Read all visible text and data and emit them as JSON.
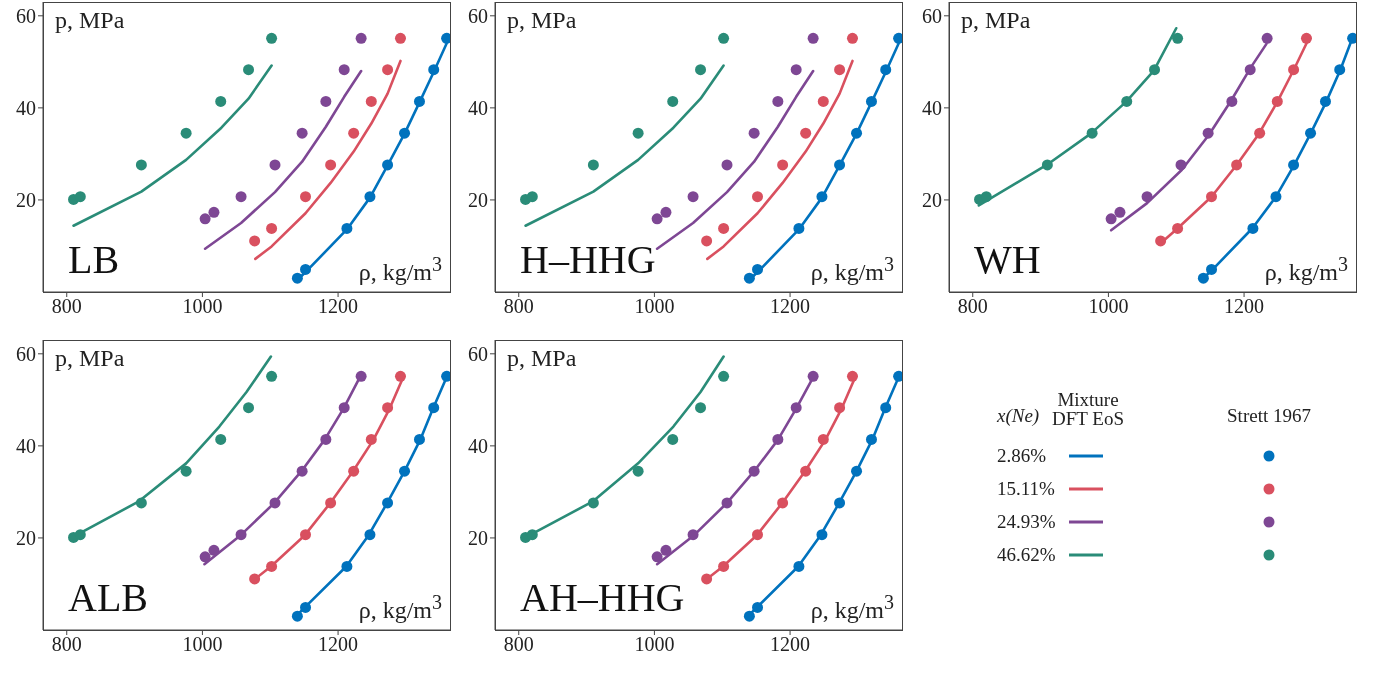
{
  "chart_data": [
    {
      "type": "line",
      "title": "LB",
      "xlabel": "ρ, kg/m$^{3}$",
      "ylabel": "p, MPa",
      "xlim": [
        765,
        1365
      ],
      "ylim": [
        0,
        63
      ],
      "xticks": [
        800,
        1000,
        1200
      ],
      "yticks": [
        20,
        40,
        60
      ],
      "series": [
        {
          "color": "#0072bd",
          "x": [
            1137,
            1152,
            1213,
            1247,
            1273,
            1298,
            1320,
            1341,
            1360
          ],
          "values": [
            2.3,
            4.3,
            13.6,
            20.5,
            27.5,
            34.4,
            41.2,
            47.8,
            54.0
          ]
        },
        {
          "color": "#d9505f",
          "x": [
            1078,
            1102,
            1152,
            1189,
            1223,
            1249,
            1273,
            1292
          ],
          "values": [
            7.2,
            9.9,
            17.1,
            23.7,
            30.5,
            36.6,
            43.1,
            50.2
          ]
        },
        {
          "color": "#7e4794",
          "x": [
            1004,
            1057,
            1107,
            1147,
            1182,
            1209,
            1234
          ],
          "values": [
            9.4,
            15.0,
            21.7,
            28.3,
            35.9,
            42.4,
            48.0
          ]
        },
        {
          "color": "#2a8c78",
          "x": [
            810,
            910,
            976,
            1028,
            1068,
            1102
          ],
          "values": [
            14.4,
            21.8,
            28.7,
            35.7,
            42.0,
            49.2
          ]
        },
        {
          "type": "scatter",
          "marker": "circle",
          "color": "#0072bd",
          "x": [
            1140,
            1152,
            1213,
            1247,
            1273,
            1298,
            1320,
            1341,
            1360
          ],
          "values": [
            3.0,
            4.9,
            13.8,
            20.7,
            27.6,
            34.5,
            41.4,
            48.3,
            55.1
          ]
        },
        {
          "type": "scatter",
          "marker": "circle",
          "color": "#d9505f",
          "x": [
            1077,
            1102,
            1152,
            1189,
            1223,
            1249,
            1273,
            1292
          ],
          "values": [
            11.1,
            13.8,
            20.7,
            27.6,
            34.5,
            41.4,
            48.3,
            55.1
          ]
        },
        {
          "type": "scatter",
          "marker": "circle",
          "color": "#7e4794",
          "x": [
            1004,
            1017,
            1057,
            1107,
            1147,
            1182,
            1209,
            1234
          ],
          "values": [
            15.9,
            17.3,
            20.7,
            27.6,
            34.5,
            41.4,
            48.3,
            55.1
          ]
        },
        {
          "type": "scatter",
          "marker": "circle",
          "color": "#2a8c78",
          "x": [
            810,
            820,
            910,
            976,
            1027,
            1068,
            1102
          ],
          "values": [
            20.1,
            20.7,
            27.6,
            34.5,
            41.4,
            48.3,
            55.1
          ]
        }
      ]
    },
    {
      "type": "line",
      "title": "H–HHG",
      "xlabel": "ρ, kg/m$^{3}$",
      "ylabel": "p, MPa",
      "xlim": [
        765,
        1365
      ],
      "ylim": [
        0,
        63
      ],
      "xticks": [
        800,
        1000,
        1200
      ],
      "yticks": [
        20,
        40,
        60
      ],
      "series": [
        {
          "color": "#0072bd",
          "x": [
            1137,
            1152,
            1213,
            1247,
            1273,
            1298,
            1320,
            1341,
            1360
          ],
          "values": [
            2.3,
            4.3,
            13.6,
            20.5,
            27.5,
            34.4,
            41.2,
            47.8,
            54.0
          ]
        },
        {
          "color": "#d9505f",
          "x": [
            1078,
            1102,
            1152,
            1189,
            1223,
            1249,
            1273,
            1292
          ],
          "values": [
            7.2,
            9.9,
            17.1,
            23.7,
            30.5,
            36.6,
            43.1,
            50.2
          ]
        },
        {
          "color": "#7e4794",
          "x": [
            1004,
            1057,
            1107,
            1147,
            1182,
            1209,
            1234
          ],
          "values": [
            9.4,
            15.0,
            21.7,
            28.3,
            35.9,
            42.4,
            48.0
          ]
        },
        {
          "color": "#2a8c78",
          "x": [
            810,
            910,
            976,
            1028,
            1068,
            1102
          ],
          "values": [
            14.4,
            21.8,
            28.7,
            35.7,
            42.0,
            49.2
          ]
        },
        {
          "type": "scatter",
          "marker": "circle",
          "color": "#0072bd",
          "x": [
            1140,
            1152,
            1213,
            1247,
            1273,
            1298,
            1320,
            1341,
            1360
          ],
          "values": [
            3.0,
            4.9,
            13.8,
            20.7,
            27.6,
            34.5,
            41.4,
            48.3,
            55.1
          ]
        },
        {
          "type": "scatter",
          "marker": "circle",
          "color": "#d9505f",
          "x": [
            1077,
            1102,
            1152,
            1189,
            1223,
            1249,
            1273,
            1292
          ],
          "values": [
            11.1,
            13.8,
            20.7,
            27.6,
            34.5,
            41.4,
            48.3,
            55.1
          ]
        },
        {
          "type": "scatter",
          "marker": "circle",
          "color": "#7e4794",
          "x": [
            1004,
            1017,
            1057,
            1107,
            1147,
            1182,
            1209,
            1234
          ],
          "values": [
            15.9,
            17.3,
            20.7,
            27.6,
            34.5,
            41.4,
            48.3,
            55.1
          ]
        },
        {
          "type": "scatter",
          "marker": "circle",
          "color": "#2a8c78",
          "x": [
            810,
            820,
            910,
            976,
            1027,
            1068,
            1102
          ],
          "values": [
            20.1,
            20.7,
            27.6,
            34.5,
            41.4,
            48.3,
            55.1
          ]
        }
      ]
    },
    {
      "type": "line",
      "title": "WH",
      "xlabel": "ρ, kg/m$^{3}$",
      "ylabel": "p, MPa",
      "xlim": [
        765,
        1365
      ],
      "ylim": [
        0,
        63
      ],
      "xticks": [
        800,
        1000,
        1200
      ],
      "yticks": [
        20,
        40,
        60
      ],
      "series": [
        {
          "color": "#0072bd",
          "x": [
            1136,
            1151,
            1212,
            1247,
            1274,
            1298,
            1321,
            1342,
            1360
          ],
          "values": [
            2.5,
            4.5,
            13.8,
            20.7,
            27.6,
            34.4,
            41.3,
            48.3,
            55.3
          ]
        },
        {
          "color": "#d9505f",
          "x": [
            1077,
            1101,
            1152,
            1189,
            1222,
            1249,
            1274,
            1293
          ],
          "values": [
            10.6,
            13.7,
            20.7,
            27.6,
            34.4,
            41.3,
            48.5,
            54.3
          ]
        },
        {
          "color": "#7e4794",
          "x": [
            1004,
            1057,
            1108,
            1148,
            1181,
            1210,
            1233
          ],
          "values": [
            13.4,
            19.3,
            26.5,
            34.1,
            41.6,
            48.8,
            53.9
          ]
        },
        {
          "color": "#2a8c78",
          "x": [
            809,
            909,
            974,
            1026,
            1067,
            1100
          ],
          "values": [
            18.8,
            27.6,
            34.4,
            41.3,
            48.1,
            57.3
          ]
        },
        {
          "type": "scatter",
          "marker": "circle",
          "color": "#0072bd",
          "x": [
            1140,
            1152,
            1213,
            1247,
            1273,
            1298,
            1320,
            1341,
            1360
          ],
          "values": [
            3.0,
            4.9,
            13.8,
            20.7,
            27.6,
            34.5,
            41.4,
            48.3,
            55.1
          ]
        },
        {
          "type": "scatter",
          "marker": "circle",
          "color": "#d9505f",
          "x": [
            1077,
            1102,
            1152,
            1189,
            1223,
            1249,
            1273,
            1292
          ],
          "values": [
            11.1,
            13.8,
            20.7,
            27.6,
            34.5,
            41.4,
            48.3,
            55.1
          ]
        },
        {
          "type": "scatter",
          "marker": "circle",
          "color": "#7e4794",
          "x": [
            1004,
            1017,
            1057,
            1107,
            1147,
            1182,
            1209,
            1234
          ],
          "values": [
            15.9,
            17.3,
            20.7,
            27.6,
            34.5,
            41.4,
            48.3,
            55.1
          ]
        },
        {
          "type": "scatter",
          "marker": "circle",
          "color": "#2a8c78",
          "x": [
            810,
            820,
            910,
            976,
            1027,
            1068,
            1102
          ],
          "values": [
            20.1,
            20.7,
            27.6,
            34.5,
            41.4,
            48.3,
            55.1
          ]
        }
      ]
    },
    {
      "type": "line",
      "title": "ALB",
      "xlabel": "ρ, kg/m$^{3}$",
      "ylabel": "p, MPa",
      "xlim": [
        765,
        1365
      ],
      "ylim": [
        0,
        63
      ],
      "xticks": [
        800,
        1000,
        1200
      ],
      "yticks": [
        20,
        40,
        60
      ],
      "series": [
        {
          "color": "#0072bd",
          "x": [
            1138,
            1151,
            1212,
            1245,
            1272,
            1298,
            1321,
            1340,
            1360
          ],
          "values": [
            3.0,
            4.9,
            13.8,
            20.6,
            27.5,
            34.5,
            41.3,
            48.1,
            54.9
          ]
        },
        {
          "color": "#d9505f",
          "x": [
            1076,
            1101,
            1151,
            1188,
            1222,
            1252,
            1276,
            1296
          ],
          "values": [
            10.9,
            13.8,
            20.6,
            27.5,
            34.5,
            41.3,
            48.1,
            54.9
          ]
        },
        {
          "color": "#7e4794",
          "x": [
            1003,
            1055,
            1106,
            1146,
            1180,
            1208,
            1232
          ],
          "values": [
            14.3,
            20.4,
            27.6,
            34.5,
            41.3,
            48.1,
            54.9
          ]
        },
        {
          "color": "#2a8c78",
          "x": [
            808,
            907,
            976,
            1025,
            1065,
            1101
          ],
          "values": [
            20.1,
            28.0,
            36.2,
            44.2,
            51.7,
            59.4
          ]
        },
        {
          "type": "scatter",
          "marker": "circle",
          "color": "#0072bd",
          "x": [
            1140,
            1152,
            1213,
            1247,
            1273,
            1298,
            1320,
            1341,
            1360
          ],
          "values": [
            3.0,
            4.9,
            13.8,
            20.7,
            27.6,
            34.5,
            41.4,
            48.3,
            55.1
          ]
        },
        {
          "type": "scatter",
          "marker": "circle",
          "color": "#d9505f",
          "x": [
            1077,
            1102,
            1152,
            1189,
            1223,
            1249,
            1273,
            1292
          ],
          "values": [
            11.1,
            13.8,
            20.7,
            27.6,
            34.5,
            41.4,
            48.3,
            55.1
          ]
        },
        {
          "type": "scatter",
          "marker": "circle",
          "color": "#7e4794",
          "x": [
            1004,
            1017,
            1057,
            1107,
            1147,
            1182,
            1209,
            1234
          ],
          "values": [
            15.9,
            17.3,
            20.7,
            27.6,
            34.5,
            41.4,
            48.3,
            55.1
          ]
        },
        {
          "type": "scatter",
          "marker": "circle",
          "color": "#2a8c78",
          "x": [
            810,
            820,
            910,
            976,
            1027,
            1068,
            1102
          ],
          "values": [
            20.1,
            20.7,
            27.6,
            34.5,
            41.4,
            48.3,
            55.1
          ]
        }
      ]
    },
    {
      "type": "line",
      "title": "AH–HHG",
      "xlabel": "ρ, kg/m$^{3}$",
      "ylabel": "p, MPa",
      "xlim": [
        765,
        1365
      ],
      "ylim": [
        0,
        63
      ],
      "xticks": [
        800,
        1000,
        1200
      ],
      "yticks": [
        20,
        40,
        60
      ],
      "legend": "right",
      "legend_title": "x(Ne)",
      "annotations": [
        "Mixture DFT EoS",
        "Strett 1967"
      ],
      "series": [
        {
          "name": "2.86%",
          "color": "#0072bd",
          "x": [
            1138,
            1151,
            1212,
            1245,
            1272,
            1298,
            1321,
            1340,
            1360
          ],
          "values": [
            3.0,
            4.9,
            13.8,
            20.6,
            27.5,
            34.5,
            41.3,
            48.1,
            54.9
          ]
        },
        {
          "name": "15.11%",
          "color": "#d9505f",
          "x": [
            1076,
            1101,
            1151,
            1188,
            1222,
            1252,
            1276,
            1296
          ],
          "values": [
            10.9,
            13.8,
            20.6,
            27.5,
            34.5,
            41.3,
            48.1,
            54.9
          ]
        },
        {
          "name": "24.93%",
          "color": "#7e4794",
          "x": [
            1004,
            1057,
            1107,
            1147,
            1182,
            1209,
            1234
          ],
          "values": [
            14.3,
            20.4,
            27.6,
            34.5,
            41.3,
            48.1,
            54.9
          ]
        },
        {
          "name": "46.62%",
          "color": "#2a8c78",
          "x": [
            810,
            910,
            976,
            1028,
            1068,
            1102
          ],
          "values": [
            20.1,
            28.0,
            36.2,
            44.2,
            51.7,
            59.4
          ]
        },
        {
          "type": "scatter",
          "marker": "circle",
          "color": "#0072bd",
          "x": [
            1140,
            1152,
            1213,
            1247,
            1273,
            1298,
            1320,
            1341,
            1360
          ],
          "values": [
            3.0,
            4.9,
            13.8,
            20.7,
            27.6,
            34.5,
            41.4,
            48.3,
            55.1
          ]
        },
        {
          "type": "scatter",
          "marker": "circle",
          "color": "#d9505f",
          "x": [
            1077,
            1102,
            1152,
            1189,
            1223,
            1249,
            1273,
            1292
          ],
          "values": [
            11.1,
            13.8,
            20.7,
            27.6,
            34.5,
            41.4,
            48.3,
            55.1
          ]
        },
        {
          "type": "scatter",
          "marker": "circle",
          "color": "#7e4794",
          "x": [
            1004,
            1017,
            1057,
            1107,
            1147,
            1182,
            1209,
            1234
          ],
          "values": [
            15.9,
            17.3,
            20.7,
            27.6,
            34.5,
            41.4,
            48.3,
            55.1
          ]
        },
        {
          "type": "scatter",
          "marker": "circle",
          "color": "#2a8c78",
          "x": [
            810,
            820,
            910,
            976,
            1027,
            1068,
            1102
          ],
          "values": [
            20.1,
            20.7,
            27.6,
            34.5,
            41.4,
            48.3,
            55.1
          ]
        }
      ]
    }
  ]
}
